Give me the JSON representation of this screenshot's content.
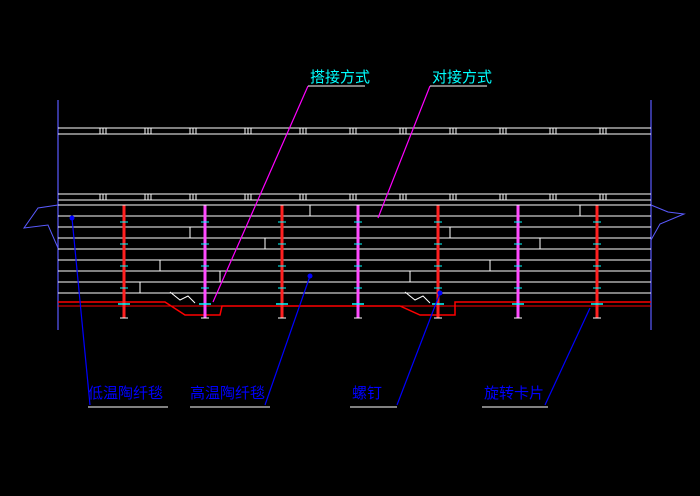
{
  "labels": {
    "overlap_method": "搭接方式",
    "butt_method": "对接方式",
    "low_temp_blanket": "低温陶纤毯",
    "high_temp_blanket": "高温陶纤毯",
    "bolt": "螺钉",
    "rotating_clip": "旋转卡片"
  },
  "colors": {
    "background": "#000000",
    "cyan_label": "#00ffff",
    "blue_label": "#0000ff",
    "magenta_leader": "#ff00ff",
    "blue_leader": "#0000ff",
    "red_structure": "#ff0000",
    "white_lines": "#ffffff"
  }
}
